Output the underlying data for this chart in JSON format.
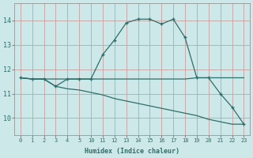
{
  "xlabel": "Humidex (Indice chaleur)",
  "bg_color": "#cde8e8",
  "grid_color": "#c8a0a0",
  "line_color": "#2e6e6a",
  "x_labels": [
    "0",
    "1",
    "2",
    "3",
    "4",
    "5",
    "10",
    "11",
    "12",
    "13",
    "14",
    "15",
    "16",
    "17",
    "18",
    "19",
    "20",
    "21",
    "22",
    "23"
  ],
  "y_ticks": [
    10,
    11,
    12,
    13,
    14
  ],
  "ylim": [
    9.3,
    14.7
  ],
  "main_y": [
    11.65,
    11.6,
    11.6,
    11.3,
    11.6,
    11.6,
    11.6,
    12.6,
    13.2,
    13.9,
    14.05,
    14.05,
    13.85,
    14.05,
    13.3,
    11.65,
    11.65,
    11.0,
    10.45,
    9.75
  ],
  "upper_y": [
    11.65,
    11.6,
    11.6,
    11.6,
    11.6,
    11.6,
    11.6,
    11.6,
    11.6,
    11.6,
    11.6,
    11.6,
    11.6,
    11.6,
    11.6,
    11.65,
    11.65,
    11.65,
    11.65,
    11.65
  ],
  "lower_y": [
    11.65,
    11.6,
    11.6,
    11.3,
    11.2,
    11.15,
    11.05,
    10.95,
    10.8,
    10.7,
    10.6,
    10.5,
    10.4,
    10.3,
    10.2,
    10.1,
    9.95,
    9.85,
    9.75,
    9.75
  ]
}
